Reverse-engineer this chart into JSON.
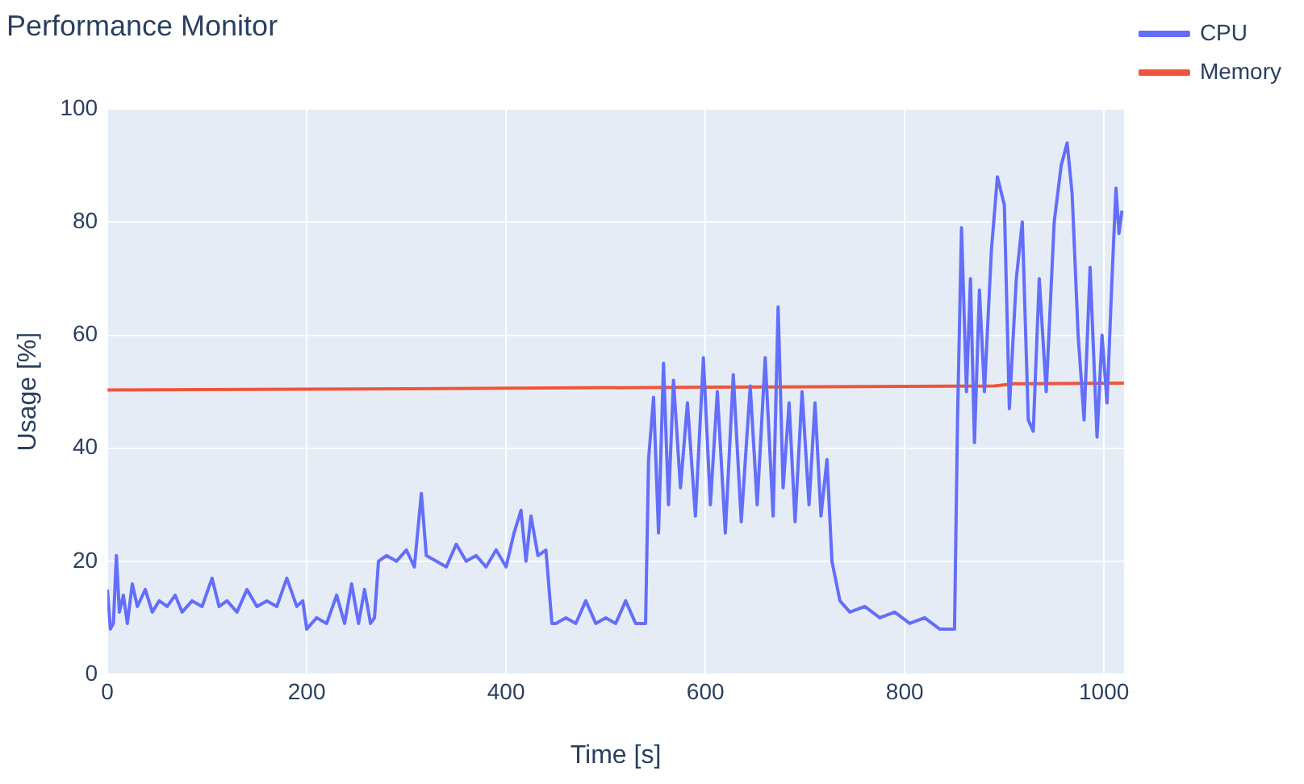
{
  "chart_data": {
    "type": "line",
    "title": "Performance Monitor",
    "xlabel": "Time [s]",
    "ylabel": "Usage [%]",
    "xlim": [
      0,
      1020
    ],
    "ylim": [
      0,
      100
    ],
    "xticks": [
      0,
      200,
      400,
      600,
      800,
      1000
    ],
    "yticks": [
      0,
      20,
      40,
      60,
      80,
      100
    ],
    "grid": true,
    "legend": "top right",
    "series": [
      {
        "name": "CPU",
        "color": "#636efa",
        "x": [
          0,
          3,
          6,
          9,
          12,
          16,
          20,
          25,
          30,
          38,
          45,
          52,
          60,
          68,
          75,
          85,
          95,
          105,
          112,
          120,
          130,
          140,
          150,
          160,
          170,
          180,
          190,
          196,
          200,
          210,
          220,
          230,
          238,
          245,
          252,
          258,
          264,
          268,
          272,
          280,
          290,
          300,
          308,
          315,
          320,
          330,
          340,
          350,
          360,
          370,
          380,
          390,
          400,
          408,
          415,
          420,
          425,
          432,
          440,
          446,
          450,
          460,
          470,
          480,
          490,
          500,
          510,
          520,
          530,
          540,
          543,
          548,
          553,
          558,
          563,
          568,
          575,
          582,
          590,
          598,
          605,
          612,
          620,
          628,
          636,
          645,
          652,
          660,
          668,
          673,
          678,
          684,
          690,
          697,
          704,
          710,
          716,
          722,
          727,
          735,
          745,
          760,
          775,
          790,
          805,
          820,
          835,
          845,
          850,
          853,
          857,
          862,
          866,
          870,
          875,
          880,
          887,
          893,
          900,
          905,
          912,
          918,
          924,
          929,
          935,
          942,
          950,
          957,
          963,
          968,
          974,
          980,
          986,
          993,
          998,
          1003,
          1008,
          1012,
          1015,
          1018
        ],
        "values": [
          15,
          8,
          9,
          21,
          11,
          14,
          9,
          16,
          12,
          15,
          11,
          13,
          12,
          14,
          11,
          13,
          12,
          17,
          12,
          13,
          11,
          15,
          12,
          13,
          12,
          17,
          12,
          13,
          8,
          10,
          9,
          14,
          9,
          16,
          9,
          15,
          9,
          10,
          20,
          21,
          20,
          22,
          19,
          32,
          21,
          20,
          19,
          23,
          20,
          21,
          19,
          22,
          19,
          25,
          29,
          20,
          28,
          21,
          22,
          9,
          9,
          10,
          9,
          13,
          9,
          10,
          9,
          13,
          9,
          9,
          38,
          49,
          25,
          55,
          30,
          52,
          33,
          48,
          28,
          56,
          30,
          50,
          25,
          53,
          27,
          51,
          30,
          56,
          28,
          65,
          33,
          48,
          27,
          50,
          30,
          48,
          28,
          38,
          20,
          13,
          11,
          12,
          10,
          11,
          9,
          10,
          8,
          8,
          8,
          45,
          79,
          50,
          70,
          41,
          68,
          50,
          75,
          88,
          83,
          47,
          70,
          80,
          45,
          43,
          70,
          50,
          80,
          90,
          94,
          85,
          60,
          45,
          72,
          42,
          60,
          48,
          70,
          86,
          78,
          82
        ]
      },
      {
        "name": "Memory",
        "color": "#ef553b",
        "x": [
          0,
          300,
          600,
          890,
          910,
          1020
        ],
        "values": [
          50.3,
          50.5,
          50.8,
          51.0,
          51.4,
          51.5
        ]
      }
    ]
  }
}
